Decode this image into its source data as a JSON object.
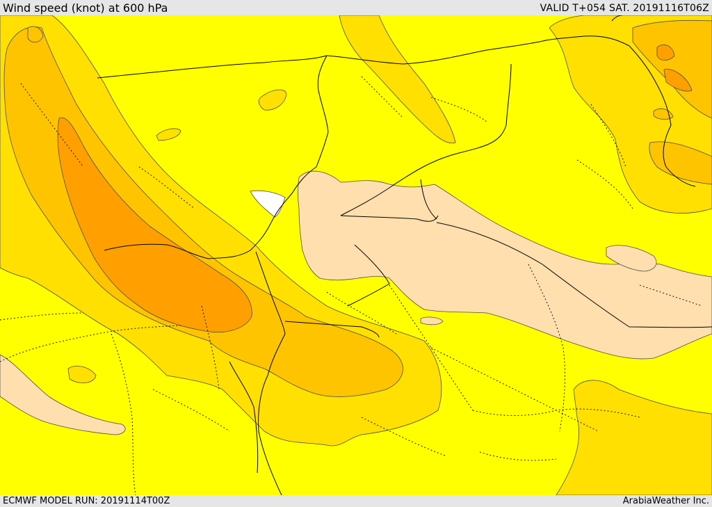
{
  "header": {
    "title": "Wind speed (knot) at 600 hPa",
    "valid": "VALID T+054 SAT. 20191116T06Z"
  },
  "footer": {
    "model_run": "ECMWF MODEL RUN: 20191114T00Z",
    "credit": "ArabiaWeather Inc."
  },
  "map": {
    "parameter": "wind speed",
    "level_hpa": 600,
    "unit": "knot",
    "fill_colors": {
      "background_level": "#ffff00",
      "level_2": "#ffe000",
      "level_3": "#ffc400",
      "level_4": "#ffa000",
      "calm": "#ffdfae",
      "sea_gap": "#ffffff"
    },
    "line_colors": {
      "contour": "#4d4d4d",
      "border": "#000000",
      "province": "#000000"
    }
  }
}
